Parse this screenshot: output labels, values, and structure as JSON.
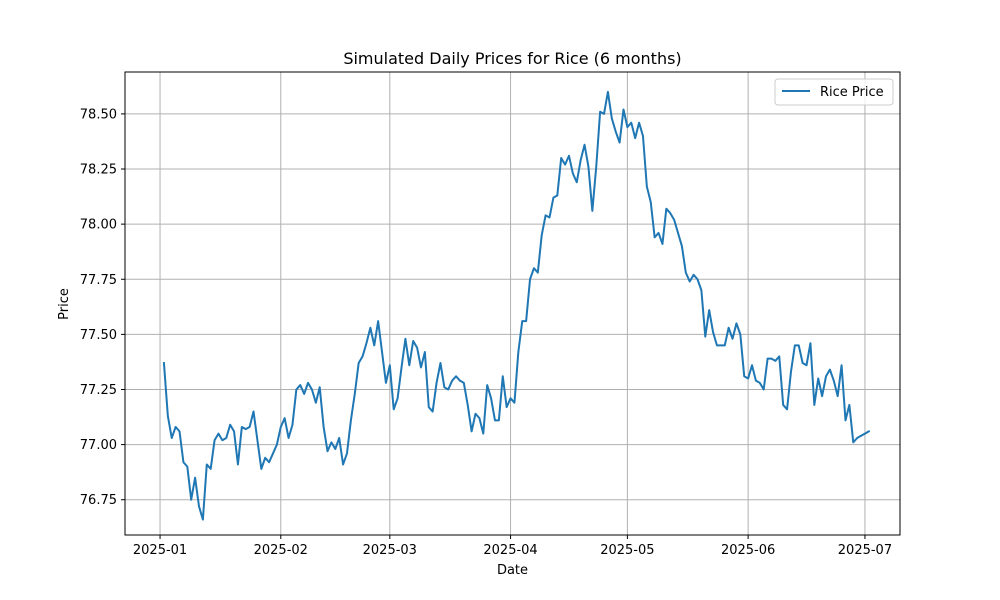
{
  "chart_data": {
    "type": "line",
    "title": "Simulated Daily Prices for Rice (6 months)",
    "xlabel": "Date",
    "ylabel": "Price",
    "x_axis": {
      "type": "date",
      "range": [
        "2024-12-23",
        "2025-07-10"
      ],
      "ticks": [
        {
          "date": "2025-01-01",
          "label": "2025-01"
        },
        {
          "date": "2025-02-01",
          "label": "2025-02"
        },
        {
          "date": "2025-03-01",
          "label": "2025-03"
        },
        {
          "date": "2025-04-01",
          "label": "2025-04"
        },
        {
          "date": "2025-05-01",
          "label": "2025-05"
        },
        {
          "date": "2025-06-01",
          "label": "2025-06"
        },
        {
          "date": "2025-07-01",
          "label": "2025-07"
        }
      ]
    },
    "y_axis": {
      "range": [
        76.59,
        78.69
      ],
      "ticks": [
        {
          "value": 76.75,
          "label": "76.75"
        },
        {
          "value": 77.0,
          "label": "77.00"
        },
        {
          "value": 77.25,
          "label": "77.25"
        },
        {
          "value": 77.5,
          "label": "77.50"
        },
        {
          "value": 77.75,
          "label": "77.75"
        },
        {
          "value": 78.0,
          "label": "78.00"
        },
        {
          "value": 78.25,
          "label": "78.25"
        },
        {
          "value": 78.5,
          "label": "78.50"
        }
      ]
    },
    "grid": true,
    "legend": {
      "position": "top-right"
    },
    "series": [
      {
        "name": "Rice Price",
        "color": "#1f77b4",
        "points": [
          [
            "2025-01-02",
            77.37
          ],
          [
            "2025-01-03",
            77.13
          ],
          [
            "2025-01-04",
            77.03
          ],
          [
            "2025-01-05",
            77.08
          ],
          [
            "2025-01-06",
            77.06
          ],
          [
            "2025-01-07",
            76.92
          ],
          [
            "2025-01-08",
            76.9
          ],
          [
            "2025-01-09",
            76.75
          ],
          [
            "2025-01-10",
            76.85
          ],
          [
            "2025-01-11",
            76.72
          ],
          [
            "2025-01-12",
            76.66
          ],
          [
            "2025-01-13",
            76.91
          ],
          [
            "2025-01-14",
            76.89
          ],
          [
            "2025-01-15",
            77.02
          ],
          [
            "2025-01-16",
            77.05
          ],
          [
            "2025-01-17",
            77.02
          ],
          [
            "2025-01-18",
            77.03
          ],
          [
            "2025-01-19",
            77.09
          ],
          [
            "2025-01-20",
            77.06
          ],
          [
            "2025-01-21",
            76.91
          ],
          [
            "2025-01-22",
            77.08
          ],
          [
            "2025-01-23",
            77.07
          ],
          [
            "2025-01-24",
            77.08
          ],
          [
            "2025-01-25",
            77.15
          ],
          [
            "2025-01-26",
            77.02
          ],
          [
            "2025-01-27",
            76.89
          ],
          [
            "2025-01-28",
            76.94
          ],
          [
            "2025-01-29",
            76.92
          ],
          [
            "2025-01-30",
            76.96
          ],
          [
            "2025-01-31",
            77.0
          ],
          [
            "2025-02-01",
            77.08
          ],
          [
            "2025-02-02",
            77.12
          ],
          [
            "2025-02-03",
            77.03
          ],
          [
            "2025-02-04",
            77.09
          ],
          [
            "2025-02-05",
            77.25
          ],
          [
            "2025-02-06",
            77.27
          ],
          [
            "2025-02-07",
            77.23
          ],
          [
            "2025-02-08",
            77.28
          ],
          [
            "2025-02-09",
            77.25
          ],
          [
            "2025-02-10",
            77.19
          ],
          [
            "2025-02-11",
            77.26
          ],
          [
            "2025-02-12",
            77.08
          ],
          [
            "2025-02-13",
            76.97
          ],
          [
            "2025-02-14",
            77.01
          ],
          [
            "2025-02-15",
            76.98
          ],
          [
            "2025-02-16",
            77.03
          ],
          [
            "2025-02-17",
            76.91
          ],
          [
            "2025-02-18",
            76.96
          ],
          [
            "2025-02-19",
            77.11
          ],
          [
            "2025-02-20",
            77.23
          ],
          [
            "2025-02-21",
            77.37
          ],
          [
            "2025-02-22",
            77.4
          ],
          [
            "2025-02-23",
            77.46
          ],
          [
            "2025-02-24",
            77.53
          ],
          [
            "2025-02-25",
            77.45
          ],
          [
            "2025-02-26",
            77.56
          ],
          [
            "2025-02-27",
            77.42
          ],
          [
            "2025-02-28",
            77.28
          ],
          [
            "2025-03-01",
            77.36
          ],
          [
            "2025-03-02",
            77.16
          ],
          [
            "2025-03-03",
            77.21
          ],
          [
            "2025-03-04",
            77.35
          ],
          [
            "2025-03-05",
            77.48
          ],
          [
            "2025-03-06",
            77.36
          ],
          [
            "2025-03-07",
            77.47
          ],
          [
            "2025-03-08",
            77.44
          ],
          [
            "2025-03-09",
            77.35
          ],
          [
            "2025-03-10",
            77.42
          ],
          [
            "2025-03-11",
            77.17
          ],
          [
            "2025-03-12",
            77.15
          ],
          [
            "2025-03-13",
            77.28
          ],
          [
            "2025-03-14",
            77.37
          ],
          [
            "2025-03-15",
            77.26
          ],
          [
            "2025-03-16",
            77.25
          ],
          [
            "2025-03-17",
            77.29
          ],
          [
            "2025-03-18",
            77.31
          ],
          [
            "2025-03-19",
            77.29
          ],
          [
            "2025-03-20",
            77.28
          ],
          [
            "2025-03-21",
            77.18
          ],
          [
            "2025-03-22",
            77.06
          ],
          [
            "2025-03-23",
            77.14
          ],
          [
            "2025-03-24",
            77.12
          ],
          [
            "2025-03-25",
            77.05
          ],
          [
            "2025-03-26",
            77.27
          ],
          [
            "2025-03-27",
            77.21
          ],
          [
            "2025-03-28",
            77.11
          ],
          [
            "2025-03-29",
            77.11
          ],
          [
            "2025-03-30",
            77.31
          ],
          [
            "2025-03-31",
            77.17
          ],
          [
            "2025-04-01",
            77.21
          ],
          [
            "2025-04-02",
            77.19
          ],
          [
            "2025-04-03",
            77.42
          ],
          [
            "2025-04-04",
            77.56
          ],
          [
            "2025-04-05",
            77.56
          ],
          [
            "2025-04-06",
            77.75
          ],
          [
            "2025-04-07",
            77.8
          ],
          [
            "2025-04-08",
            77.78
          ],
          [
            "2025-04-09",
            77.95
          ],
          [
            "2025-04-10",
            78.04
          ],
          [
            "2025-04-11",
            78.03
          ],
          [
            "2025-04-12",
            78.12
          ],
          [
            "2025-04-13",
            78.13
          ],
          [
            "2025-04-14",
            78.3
          ],
          [
            "2025-04-15",
            78.27
          ],
          [
            "2025-04-16",
            78.31
          ],
          [
            "2025-04-17",
            78.23
          ],
          [
            "2025-04-18",
            78.19
          ],
          [
            "2025-04-19",
            78.29
          ],
          [
            "2025-04-20",
            78.36
          ],
          [
            "2025-04-21",
            78.26
          ],
          [
            "2025-04-22",
            78.06
          ],
          [
            "2025-04-23",
            78.26
          ],
          [
            "2025-04-24",
            78.51
          ],
          [
            "2025-04-25",
            78.5
          ],
          [
            "2025-04-26",
            78.6
          ],
          [
            "2025-04-27",
            78.48
          ],
          [
            "2025-04-28",
            78.42
          ],
          [
            "2025-04-29",
            78.37
          ],
          [
            "2025-04-30",
            78.52
          ],
          [
            "2025-05-01",
            78.44
          ],
          [
            "2025-05-02",
            78.46
          ],
          [
            "2025-05-03",
            78.39
          ],
          [
            "2025-05-04",
            78.46
          ],
          [
            "2025-05-05",
            78.4
          ],
          [
            "2025-05-06",
            78.17
          ],
          [
            "2025-05-07",
            78.1
          ],
          [
            "2025-05-08",
            77.94
          ],
          [
            "2025-05-09",
            77.96
          ],
          [
            "2025-05-10",
            77.91
          ],
          [
            "2025-05-11",
            78.07
          ],
          [
            "2025-05-12",
            78.05
          ],
          [
            "2025-05-13",
            78.02
          ],
          [
            "2025-05-14",
            77.96
          ],
          [
            "2025-05-15",
            77.9
          ],
          [
            "2025-05-16",
            77.78
          ],
          [
            "2025-05-17",
            77.74
          ],
          [
            "2025-05-18",
            77.77
          ],
          [
            "2025-05-19",
            77.75
          ],
          [
            "2025-05-20",
            77.7
          ],
          [
            "2025-05-21",
            77.49
          ],
          [
            "2025-05-22",
            77.61
          ],
          [
            "2025-05-23",
            77.51
          ],
          [
            "2025-05-24",
            77.45
          ],
          [
            "2025-05-25",
            77.45
          ],
          [
            "2025-05-26",
            77.45
          ],
          [
            "2025-05-27",
            77.53
          ],
          [
            "2025-05-28",
            77.48
          ],
          [
            "2025-05-29",
            77.55
          ],
          [
            "2025-05-30",
            77.5
          ],
          [
            "2025-05-31",
            77.31
          ],
          [
            "2025-06-01",
            77.3
          ],
          [
            "2025-06-02",
            77.36
          ],
          [
            "2025-06-03",
            77.29
          ],
          [
            "2025-06-04",
            77.28
          ],
          [
            "2025-06-05",
            77.25
          ],
          [
            "2025-06-06",
            77.39
          ],
          [
            "2025-06-07",
            77.39
          ],
          [
            "2025-06-08",
            77.38
          ],
          [
            "2025-06-09",
            77.4
          ],
          [
            "2025-06-10",
            77.18
          ],
          [
            "2025-06-11",
            77.16
          ],
          [
            "2025-06-12",
            77.33
          ],
          [
            "2025-06-13",
            77.45
          ],
          [
            "2025-06-14",
            77.45
          ],
          [
            "2025-06-15",
            77.37
          ],
          [
            "2025-06-16",
            77.36
          ],
          [
            "2025-06-17",
            77.46
          ],
          [
            "2025-06-18",
            77.18
          ],
          [
            "2025-06-19",
            77.3
          ],
          [
            "2025-06-20",
            77.22
          ],
          [
            "2025-06-21",
            77.31
          ],
          [
            "2025-06-22",
            77.34
          ],
          [
            "2025-06-23",
            77.29
          ],
          [
            "2025-06-24",
            77.22
          ],
          [
            "2025-06-25",
            77.36
          ],
          [
            "2025-06-26",
            77.11
          ],
          [
            "2025-06-27",
            77.18
          ],
          [
            "2025-06-28",
            77.01
          ],
          [
            "2025-06-29",
            77.03
          ],
          [
            "2025-06-30",
            77.04
          ],
          [
            "2025-07-01",
            77.05
          ],
          [
            "2025-07-02",
            77.06
          ]
        ]
      }
    ]
  }
}
